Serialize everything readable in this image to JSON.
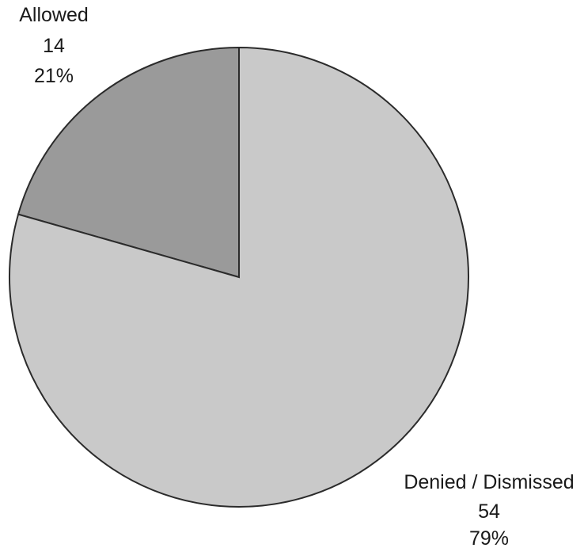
{
  "chart_data": {
    "type": "pie",
    "slices": [
      {
        "label": "Allowed",
        "value": 14,
        "percent": "21%",
        "color": "#9a9a9a"
      },
      {
        "label": "Denied / Dismissed",
        "value": 54,
        "percent": "79%",
        "color": "#c9c9c9"
      }
    ],
    "start_angle_deg": 0,
    "direction": "counterclockwise",
    "legend": "none"
  }
}
